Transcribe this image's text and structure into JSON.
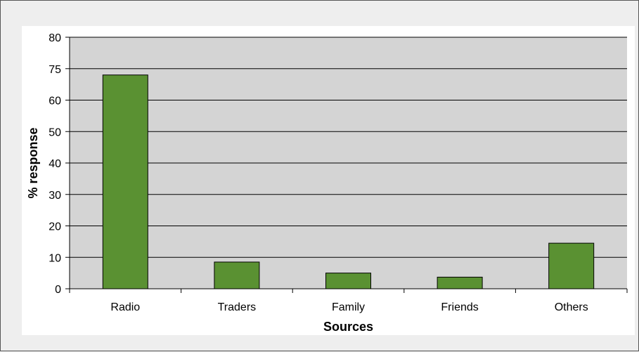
{
  "chart_data": {
    "type": "bar",
    "title": "",
    "xlabel": "Sources",
    "ylabel": "% response",
    "categories": [
      "Radio",
      "Traders",
      "Family",
      "Friends",
      "Others"
    ],
    "values": [
      68,
      8.5,
      5,
      3.7,
      14.5
    ],
    "y_ticks": [
      "0",
      "10",
      "20",
      "30",
      "40",
      "50",
      "60",
      "75",
      "80"
    ],
    "ylim": [
      0,
      80
    ],
    "grid": true,
    "legend": "none",
    "colors": {
      "bar": "#5a9132",
      "bar_border": "#000000",
      "plot_background": "#d4d4d4",
      "gridline": "#000000"
    }
  }
}
